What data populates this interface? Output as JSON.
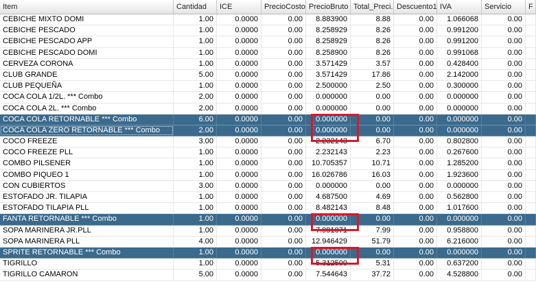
{
  "columns": [
    "Item",
    "Cantidad",
    "ICE",
    "PrecioCosto",
    "PrecioBruto",
    "Total_Preci...",
    "Descuento1",
    "IVA",
    "Servicio",
    "F"
  ],
  "rows": [
    {
      "cells": [
        "CEBICHE MIXTO DOMI",
        "1.00",
        "0.0000",
        "0.00",
        "8.883900",
        "8.88",
        "0.00",
        "1.066068",
        "0.00"
      ]
    },
    {
      "cells": [
        "CEBICHE PESCADO",
        "1.00",
        "0.0000",
        "0.00",
        "8.258929",
        "8.26",
        "0.00",
        "0.991200",
        "0.00"
      ]
    },
    {
      "cells": [
        "CEBICHE PESCADO APP",
        "1.00",
        "0.0000",
        "0.00",
        "8.258929",
        "8.26",
        "0.00",
        "0.991200",
        "0.00"
      ]
    },
    {
      "cells": [
        "CEBICHE PESCADO DOMI",
        "1.00",
        "0.0000",
        "0.00",
        "8.258900",
        "8.26",
        "0.00",
        "0.991068",
        "0.00"
      ]
    },
    {
      "cells": [
        "CERVEZA CORONA",
        "1.00",
        "0.0000",
        "0.00",
        "3.571429",
        "3.57",
        "0.00",
        "0.428400",
        "0.00"
      ]
    },
    {
      "cells": [
        "CLUB GRANDE",
        "5.00",
        "0.0000",
        "0.00",
        "3.571429",
        "17.86",
        "0.00",
        "2.142000",
        "0.00"
      ]
    },
    {
      "cells": [
        "CLUB PEQUEÑA",
        "1.00",
        "0.0000",
        "0.00",
        "2.500000",
        "2.50",
        "0.00",
        "0.300000",
        "0.00"
      ]
    },
    {
      "cells": [
        "COCA COLA 1/2L. *** Combo",
        "2.00",
        "0.0000",
        "0.00",
        "0.000000",
        "0.00",
        "0.00",
        "0.000000",
        "0.00"
      ]
    },
    {
      "cells": [
        "COCA COLA 2L. *** Combo",
        "2.00",
        "0.0000",
        "0.00",
        "0.000000",
        "0.00",
        "0.00",
        "0.000000",
        "0.00"
      ]
    },
    {
      "cells": [
        "COCA COLA RETORNABLE *** Combo",
        "6.00",
        "0.0000",
        "0.00",
        "0.000000",
        "0.00",
        "0.00",
        "0.000000",
        "0.00"
      ],
      "selected": true
    },
    {
      "cells": [
        "COCA COLA ZERO RETORNABLE *** Combo",
        "2.00",
        "0.0000",
        "0.00",
        "0.000000",
        "0.00",
        "0.00",
        "0.000000",
        "0.00"
      ],
      "selected": true
    },
    {
      "cells": [
        "COCO FREEZE",
        "3.00",
        "0.0000",
        "0.00",
        "2.232143",
        "6.70",
        "0.00",
        "0.802800",
        "0.00"
      ]
    },
    {
      "cells": [
        "COCO FREEZE PLL",
        "1.00",
        "0.0000",
        "0.00",
        "2.232143",
        "2.23",
        "0.00",
        "0.267600",
        "0.00"
      ]
    },
    {
      "cells": [
        "COMBO PILSENER",
        "1.00",
        "0.0000",
        "0.00",
        "10.705357",
        "10.71",
        "0.00",
        "1.285200",
        "0.00"
      ]
    },
    {
      "cells": [
        "COMBO PIQUEO 1",
        "1.00",
        "0.0000",
        "0.00",
        "16.026786",
        "16.03",
        "0.00",
        "1.923600",
        "0.00"
      ]
    },
    {
      "cells": [
        "CON CUBIERTOS",
        "3.00",
        "0.0000",
        "0.00",
        "0.000000",
        "0.00",
        "0.00",
        "0.000000",
        "0.00"
      ]
    },
    {
      "cells": [
        "ESTOFADO JR. TILAPIA",
        "1.00",
        "0.0000",
        "0.00",
        "4.687500",
        "4.69",
        "0.00",
        "0.562800",
        "0.00"
      ]
    },
    {
      "cells": [
        "ESTOFADO TILAPIA PLL",
        "1.00",
        "0.0000",
        "0.00",
        "8.482143",
        "8.48",
        "0.00",
        "1.017600",
        "0.00"
      ]
    },
    {
      "cells": [
        "FANTA RETORNABLE *** Combo",
        "1.00",
        "0.0000",
        "0.00",
        "0.000000",
        "0.00",
        "0.00",
        "0.000000",
        "0.00"
      ],
      "selected": true
    },
    {
      "cells": [
        "SOPA MARINERA JR.PLL",
        "1.00",
        "0.0000",
        "0.00",
        "7.991071",
        "7.99",
        "0.00",
        "0.958800",
        "0.00"
      ]
    },
    {
      "cells": [
        "SOPA MARINERA PLL",
        "4.00",
        "0.0000",
        "0.00",
        "12.946429",
        "51.79",
        "0.00",
        "6.216000",
        "0.00"
      ]
    },
    {
      "cells": [
        "SPRITE RETORNABLE *** Combo",
        "1.00",
        "0.0000",
        "0.00",
        "0.000000",
        "0.00",
        "0.00",
        "0.000000",
        "0.00"
      ],
      "selected": true
    },
    {
      "cells": [
        "TIGRILLO",
        "1.00",
        "0.0000",
        "0.00",
        "5.312500",
        "5.31",
        "0.00",
        "0.637200",
        "0.00"
      ]
    },
    {
      "cells": [
        "TIGRILLO CAMARON",
        "5.00",
        "0.0000",
        "0.00",
        "7.544643",
        "37.72",
        "0.00",
        "4.528800",
        "0.00"
      ]
    }
  ],
  "highlight_color": "#d9182b"
}
